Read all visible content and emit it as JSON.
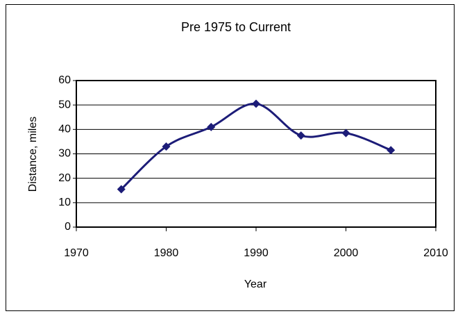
{
  "chart_data": {
    "type": "line",
    "title": "Pre 1975 to Current",
    "x_label": "Year",
    "y_label": "Distance, miles",
    "x": [
      1975,
      1980,
      1985,
      1990,
      1995,
      2000,
      2005
    ],
    "series": [
      {
        "color": "#1c1c78",
        "values": [
          15.5,
          33,
          41,
          50.5,
          37.5,
          38.5,
          31.5
        ]
      }
    ],
    "xlim": [
      1970,
      2010
    ],
    "xticks": [
      1970,
      1980,
      1990,
      2000,
      2010
    ],
    "ylim": [
      0,
      60
    ],
    "yticks": [
      0,
      10,
      20,
      30,
      40,
      50,
      60
    ],
    "grid": true,
    "smooth": true
  }
}
